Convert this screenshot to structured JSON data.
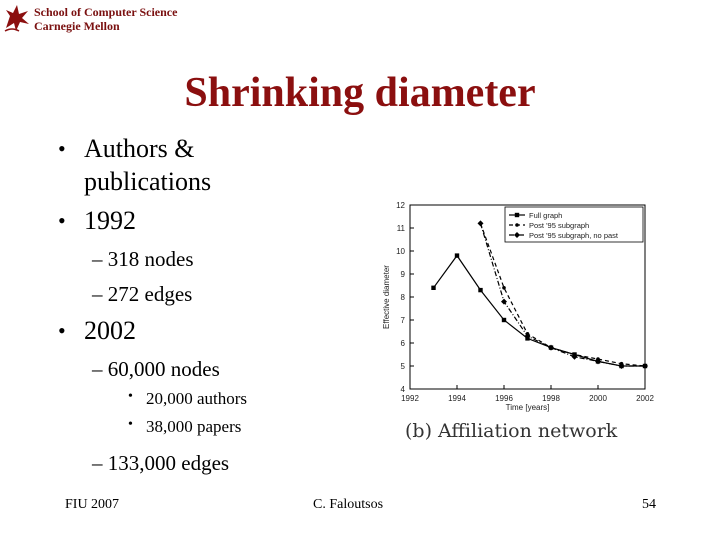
{
  "header": {
    "school_line1": "School of Computer Science",
    "school_line2": "Carnegie Mellon",
    "logo_icon": "cmu-griffin-logo"
  },
  "slide": {
    "title": "Shrinking diameter",
    "bullets": {
      "b1_line1": "Authors &",
      "b1_line2": "publications",
      "b2": "1992",
      "b2_sub1": "– 318 nodes",
      "b2_sub2": "– 272 edges",
      "b3": "2002",
      "b3_sub1": "– 60,000 nodes",
      "b3_sub1_a": "20,000 authors",
      "b3_sub1_b": "38,000 papers",
      "b3_sub2": "– 133,000 edges"
    }
  },
  "figure": {
    "caption": "(b) Affiliation network"
  },
  "footer": {
    "left": "FIU 2007",
    "center": "C. Faloutsos",
    "page": "54"
  },
  "chart_data": {
    "type": "line",
    "xlabel": "Time [years]",
    "ylabel": "Effective diameter",
    "xlim": [
      1992,
      2002
    ],
    "ylim": [
      4,
      12
    ],
    "xticks": [
      1992,
      1994,
      1996,
      1998,
      2000,
      2002
    ],
    "yticks": [
      4,
      5,
      6,
      7,
      8,
      9,
      10,
      11,
      12
    ],
    "legend_position": "top-right",
    "series": [
      {
        "name": "Full graph",
        "style": "solid",
        "marker": "square",
        "x": [
          1993,
          1994,
          1995,
          1996,
          1997,
          1998,
          1999,
          2000,
          2001,
          2002
        ],
        "y": [
          8.4,
          9.8,
          8.3,
          7.0,
          6.2,
          5.8,
          5.5,
          5.2,
          5.0,
          5.0
        ]
      },
      {
        "name": "Post '95 subgraph",
        "style": "dashed",
        "marker": "dot",
        "x": [
          1995,
          1996,
          1997,
          1998,
          1999,
          2000,
          2001,
          2002
        ],
        "y": [
          11.2,
          8.4,
          6.4,
          5.8,
          5.5,
          5.3,
          5.1,
          5.0
        ]
      },
      {
        "name": "Post '95 subgraph, no past",
        "style": "dashdot",
        "marker": "diamond",
        "x": [
          1995,
          1996,
          1997,
          1998,
          1999,
          2000,
          2001,
          2002
        ],
        "y": [
          11.2,
          7.8,
          6.3,
          5.8,
          5.4,
          5.2,
          5.0,
          5.0
        ]
      }
    ]
  }
}
